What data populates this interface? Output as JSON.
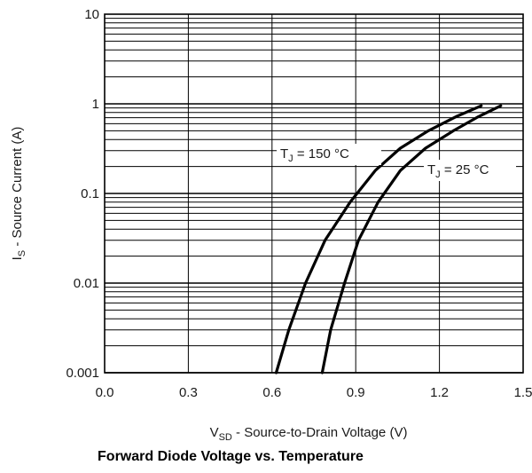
{
  "chart_data": {
    "type": "line",
    "title": "Forward Diode Voltage vs. Temperature",
    "xlabel": {
      "main": "V",
      "sub": "SD",
      "rest": " - Source-to-Drain Voltage (V)"
    },
    "ylabel": {
      "main": "I",
      "sub": "S",
      "rest": " - Source Current (A)"
    },
    "x_ticks": [
      "0.0",
      "0.3",
      "0.6",
      "0.9",
      "1.2",
      "1.5"
    ],
    "x_tick_values": [
      0.0,
      0.3,
      0.6,
      0.9,
      1.2,
      1.5
    ],
    "y_ticks": [
      "10",
      "1",
      "0.1",
      "0.01",
      "0.001"
    ],
    "y_tick_values": [
      10,
      1,
      0.1,
      0.01,
      0.001
    ],
    "xlim": [
      0.0,
      1.5
    ],
    "ylim": [
      0.001,
      10
    ],
    "y_scale": "log",
    "grid": true,
    "series": [
      {
        "name": {
          "main": "T",
          "sub": "J",
          "rest": " = 150 °C"
        },
        "x": [
          0.615,
          0.66,
          0.72,
          0.79,
          0.88,
          0.97,
          1.06,
          1.16,
          1.26,
          1.35
        ],
        "y": [
          0.001,
          0.003,
          0.01,
          0.03,
          0.08,
          0.18,
          0.32,
          0.5,
          0.72,
          0.95
        ]
      },
      {
        "name": {
          "main": "T",
          "sub": "J",
          "rest": " = 25 °C"
        },
        "x": [
          0.78,
          0.81,
          0.86,
          0.91,
          0.98,
          1.06,
          1.15,
          1.25,
          1.34,
          1.42
        ],
        "y": [
          0.001,
          0.003,
          0.01,
          0.03,
          0.08,
          0.18,
          0.32,
          0.5,
          0.72,
          0.95
        ]
      }
    ]
  }
}
